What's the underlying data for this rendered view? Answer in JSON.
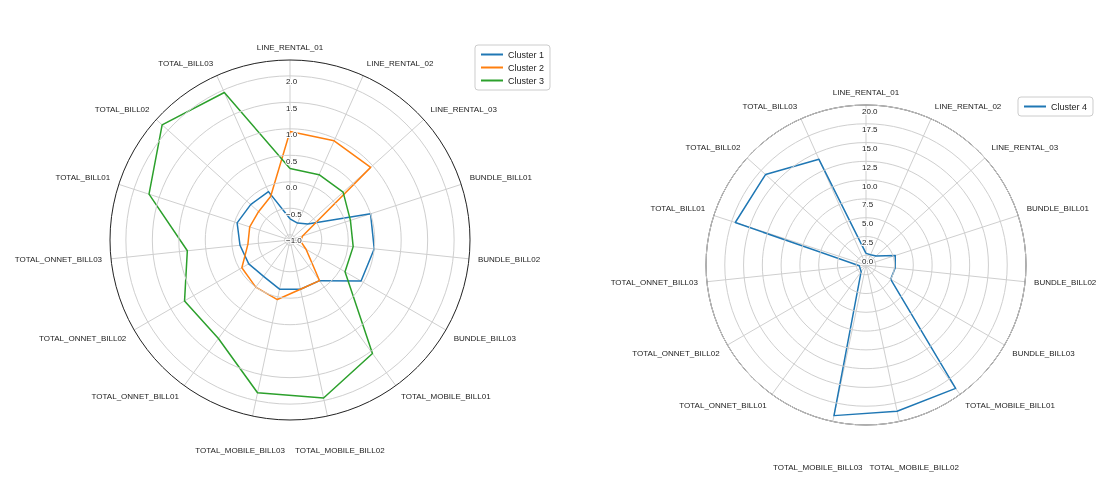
{
  "chart_data": [
    {
      "type": "radar",
      "categories": [
        "LINE_RENTAL_01",
        "LINE_RENTAL_02",
        "LINE_RENTAL_03",
        "BUNDLE_BILL01",
        "BUNDLE_BILL02",
        "BUNDLE_BILL03",
        "TOTAL_MOBILE_BILL01",
        "TOTAL_MOBILE_BILL02",
        "TOTAL_MOBILE_BILL03",
        "TOTAL_ONNET_BILL01",
        "TOTAL_ONNET_BILL02",
        "TOTAL_ONNET_BILL03",
        "TOTAL_BILL01",
        "TOTAL_BILL02",
        "TOTAL_BILL03"
      ],
      "series": [
        {
          "name": "Cluster 1",
          "color": "#1f77b4",
          "values": [
            -0.7,
            -0.75,
            -0.65,
            0.5,
            0.5,
            0.45,
            -0.15,
            -0.15,
            -0.15,
            -0.25,
            -0.2,
            -0.15,
            -0.05,
            -0.1,
            -0.1
          ]
        },
        {
          "name": "Cluster 2",
          "color": "#ff7f0e",
          "values": [
            0.95,
            0.95,
            0.95,
            -0.85,
            -0.9,
            -0.75,
            -0.15,
            -0.15,
            0.05,
            0.0,
            -0.05,
            -0.3,
            -0.3,
            -0.3,
            -0.2
          ]
        },
        {
          "name": "Cluster 3",
          "color": "#2ca02c",
          "values": [
            0.25,
            0.25,
            0.25,
            0.1,
            0.1,
            0.1,
            1.55,
            1.95,
            1.85,
            1.2,
            1.2,
            0.85,
            1.7,
            2.15,
            1.95
          ]
        }
      ],
      "ylim": [
        -1.1,
        2.3
      ],
      "yticks": [
        {
          "value": -1.0,
          "label": "−1.0"
        },
        {
          "value": -0.5,
          "label": "−0.5"
        },
        {
          "value": 0.0,
          "label": "0.0"
        },
        {
          "value": 0.5,
          "label": "0.5"
        },
        {
          "value": 1.0,
          "label": "1.0"
        },
        {
          "value": 1.5,
          "label": "1.5"
        },
        {
          "value": 2.0,
          "label": "2.0"
        }
      ],
      "grid": true,
      "legend": "top right"
    },
    {
      "type": "radar",
      "categories": [
        "LINE_RENTAL_01",
        "LINE_RENTAL_02",
        "LINE_RENTAL_03",
        "BUNDLE_BILL01",
        "BUNDLE_BILL02",
        "BUNDLE_BILL03",
        "TOTAL_MOBILE_BILL01",
        "TOTAL_MOBILE_BILL02",
        "TOTAL_MOBILE_BILL03",
        "TOTAL_ONNET_BILL01",
        "TOTAL_ONNET_BILL02",
        "TOTAL_ONNET_BILL03",
        "TOTAL_BILL01",
        "TOTAL_BILL02",
        "TOTAL_BILL03"
      ],
      "series": [
        {
          "name": "Cluster 4",
          "color": "#1f77b4",
          "values": [
            0.25,
            0.2,
            0.5,
            2.8,
            2.6,
            2.5,
            19.0,
            18.6,
            19.2,
            -0.2,
            -0.4,
            -0.4,
            17.0,
            16.7,
            14.1
          ]
        }
      ],
      "ylim": [
        -1.3,
        20.0
      ],
      "yticks": [
        {
          "value": 0.0,
          "label": "0.0"
        },
        {
          "value": 2.5,
          "label": "2.5"
        },
        {
          "value": 5.0,
          "label": "5.0"
        },
        {
          "value": 7.5,
          "label": "7.5"
        },
        {
          "value": 10.0,
          "label": "10.0"
        },
        {
          "value": 12.5,
          "label": "12.5"
        },
        {
          "value": 15.0,
          "label": "15.0"
        },
        {
          "value": 17.5,
          "label": "17.5"
        },
        {
          "value": 20.0,
          "label": "20.0"
        }
      ],
      "grid": true,
      "legend": "top right"
    }
  ]
}
